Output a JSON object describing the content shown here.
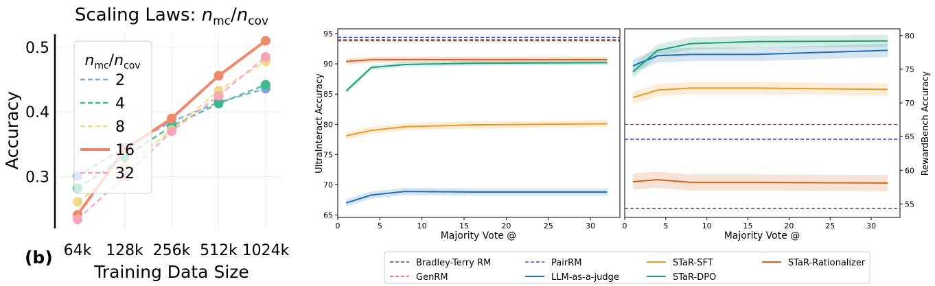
{
  "chart_data": [
    {
      "type": "line",
      "title": "Scaling Laws: n_mc/n_cov",
      "title_parts": {
        "main": "Scaling Laws: ",
        "a": "n",
        "a_sub": "mc",
        "slash": "/",
        "b": "n",
        "b_sub": "cov"
      },
      "panel_label": "(b)",
      "xlabel": "Training Data Size",
      "ylabel": "Accuracy",
      "categories": [
        "64k",
        "128k",
        "256k",
        "512k",
        "1024k"
      ],
      "ylim": [
        0.22,
        0.52
      ],
      "yticks": [
        0.3,
        0.4,
        0.5
      ],
      "ytick_labels": [
        "0.3",
        "0.4",
        "0.5"
      ],
      "grid": true,
      "legend": {
        "title": "n_mc/n_cov",
        "title_parts": {
          "a": "n",
          "a_sub": "mc",
          "slash": "/",
          "b": "n",
          "b_sub": "cov"
        },
        "placement": "upper-left"
      },
      "series": [
        {
          "name": "2",
          "values": [
            0.301,
            0.345,
            0.385,
            0.415,
            0.436
          ],
          "color": "#7aa6dc",
          "style": "dashed"
        },
        {
          "name": "4",
          "values": [
            0.282,
            0.33,
            0.378,
            0.413,
            0.442
          ],
          "color": "#3fb98c",
          "style": "dashed"
        },
        {
          "name": "8",
          "values": [
            0.261,
            0.315,
            0.372,
            0.433,
            0.478
          ],
          "color": "#efd98a",
          "style": "dashed"
        },
        {
          "name": "16",
          "values": [
            0.241,
            0.342,
            0.39,
            0.456,
            0.51
          ],
          "color": "#ee8a6b",
          "style": "solid"
        },
        {
          "name": "32",
          "values": [
            0.234,
            0.3,
            0.37,
            0.425,
            0.485
          ],
          "color": "#f4a6b8",
          "style": "dashed"
        }
      ]
    },
    {
      "type": "line",
      "xlabel": "Majority Vote @",
      "ylabel": "UltraInteract Accuracy",
      "xlim": [
        0,
        33.5
      ],
      "ylim": [
        64.6,
        95.8
      ],
      "xticks": [
        0,
        5,
        10,
        15,
        20,
        25,
        30
      ],
      "yticks": [
        65,
        70,
        75,
        80,
        85,
        90,
        95
      ],
      "grid": false,
      "x": [
        1,
        4,
        8,
        16,
        32
      ],
      "series": [
        {
          "name": "Bradley-Terry RM",
          "values": [
            93.8,
            93.8,
            93.8,
            93.8,
            93.8
          ],
          "color": "#222222",
          "style": "dashed"
        },
        {
          "name": "GenRM",
          "values": [
            94.0,
            94.0,
            94.0,
            94.0,
            94.0
          ],
          "color": "#e8262a",
          "style": "dashed"
        },
        {
          "name": "PairRM",
          "values": [
            94.4,
            94.4,
            94.4,
            94.4,
            94.4
          ],
          "color": "#2326d8",
          "style": "dashed"
        },
        {
          "name": "LLM-as-a-judge",
          "values": [
            67.0,
            68.3,
            68.9,
            68.8,
            68.8
          ],
          "color": "#1f6fb4",
          "style": "solid",
          "band": 0.6
        },
        {
          "name": "STaR-SFT",
          "values": [
            78.1,
            79.0,
            79.6,
            79.9,
            80.1
          ],
          "color": "#e99a22",
          "style": "solid",
          "band": 0.6
        },
        {
          "name": "STaR-DPO",
          "values": [
            85.5,
            89.4,
            89.9,
            90.1,
            90.2
          ],
          "color": "#1b9e77",
          "style": "solid",
          "band": 0.4
        },
        {
          "name": "STaR-Rationalizer",
          "values": [
            90.4,
            90.7,
            90.7,
            90.7,
            90.7
          ],
          "color": "#d5601b",
          "style": "solid",
          "band": 0.5
        }
      ]
    },
    {
      "type": "line",
      "xlabel": "Majority Vote @",
      "ylabel": "RewardBench Accuracy",
      "xlim": [
        0,
        33.5
      ],
      "ylim": [
        53.0,
        81.0
      ],
      "xticks": [
        0,
        5,
        10,
        15,
        20,
        25,
        30
      ],
      "yticks": [
        55,
        60,
        65,
        70,
        75,
        80
      ],
      "grid": false,
      "x": [
        1,
        4,
        8,
        16,
        32
      ],
      "series": [
        {
          "name": "Bradley-Terry RM",
          "values": [
            54.3,
            54.3,
            54.3,
            54.3,
            54.3
          ],
          "color": "#222222",
          "style": "dashed"
        },
        {
          "name": "GenRM",
          "values": [
            66.8,
            66.8,
            66.8,
            66.8,
            66.8
          ],
          "color": "#e8262a",
          "style": "dashed"
        },
        {
          "name": "PairRM",
          "values": [
            64.6,
            64.6,
            64.6,
            64.6,
            64.6
          ],
          "color": "#2326d8",
          "style": "dashed"
        },
        {
          "name": "LLM-as-a-judge",
          "values": [
            75.5,
            77.0,
            77.2,
            77.2,
            77.8
          ],
          "color": "#1f6fb4",
          "style": "solid",
          "band": 1.0
        },
        {
          "name": "STaR-SFT",
          "values": [
            70.8,
            71.9,
            72.2,
            72.2,
            72.0
          ],
          "color": "#e99a22",
          "style": "solid",
          "band": 0.9
        },
        {
          "name": "STaR-DPO",
          "values": [
            74.6,
            77.8,
            78.8,
            79.1,
            79.2
          ],
          "color": "#1b9e77",
          "style": "solid",
          "band": 0.9
        },
        {
          "name": "STaR-Rationalizer",
          "values": [
            58.3,
            58.6,
            58.2,
            58.2,
            58.1
          ],
          "color": "#d5601b",
          "style": "solid",
          "band": 1.2
        }
      ]
    }
  ],
  "legend_bottom": {
    "placement": "bottom-center",
    "columns": [
      [
        "Bradley-Terry RM",
        "GenRM"
      ],
      [
        "PairRM",
        "LLM-as-a-judge"
      ],
      [
        "STaR-SFT",
        "STaR-DPO"
      ],
      [
        "STaR-Rationalizer"
      ]
    ]
  }
}
